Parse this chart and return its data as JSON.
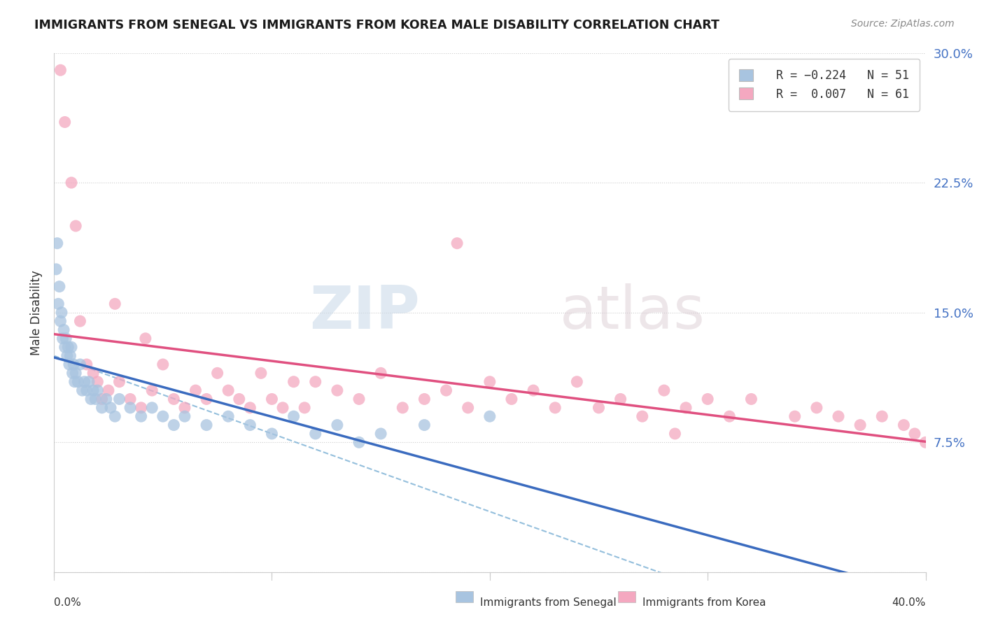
{
  "title": "IMMIGRANTS FROM SENEGAL VS IMMIGRANTS FROM KOREA MALE DISABILITY CORRELATION CHART",
  "source": "Source: ZipAtlas.com",
  "ylabel": "Male Disability",
  "xlim": [
    0.0,
    40.0
  ],
  "ylim": [
    0.0,
    30.0
  ],
  "yticks": [
    0.0,
    7.5,
    15.0,
    22.5,
    30.0
  ],
  "ytick_labels": [
    "",
    "7.5%",
    "15.0%",
    "22.5%",
    "30.0%"
  ],
  "xtick_labels": [
    "0.0%",
    "",
    "",
    "",
    "40.0%"
  ],
  "xticks": [
    0.0,
    10.0,
    20.0,
    30.0,
    40.0
  ],
  "senegal_R": -0.224,
  "senegal_N": 51,
  "korea_R": 0.007,
  "korea_N": 61,
  "senegal_color": "#a8c4e0",
  "senegal_line_color": "#3a6bbf",
  "korea_color": "#f4a8c0",
  "korea_line_color": "#e05080",
  "background_color": "#ffffff",
  "senegal_x": [
    0.1,
    0.15,
    0.2,
    0.25,
    0.3,
    0.35,
    0.4,
    0.45,
    0.5,
    0.55,
    0.6,
    0.65,
    0.7,
    0.75,
    0.8,
    0.85,
    0.9,
    0.95,
    1.0,
    1.1,
    1.2,
    1.3,
    1.4,
    1.5,
    1.6,
    1.7,
    1.8,
    1.9,
    2.0,
    2.2,
    2.4,
    2.6,
    2.8,
    3.0,
    3.5,
    4.0,
    4.5,
    5.0,
    5.5,
    6.0,
    7.0,
    8.0,
    9.0,
    10.0,
    11.0,
    12.0,
    13.0,
    14.0,
    15.0,
    17.0,
    20.0
  ],
  "senegal_y": [
    17.5,
    19.0,
    15.5,
    16.5,
    14.5,
    15.0,
    13.5,
    14.0,
    13.0,
    13.5,
    12.5,
    13.0,
    12.0,
    12.5,
    13.0,
    11.5,
    12.0,
    11.0,
    11.5,
    11.0,
    12.0,
    10.5,
    11.0,
    10.5,
    11.0,
    10.0,
    10.5,
    10.0,
    10.5,
    9.5,
    10.0,
    9.5,
    9.0,
    10.0,
    9.5,
    9.0,
    9.5,
    9.0,
    8.5,
    9.0,
    8.5,
    9.0,
    8.5,
    8.0,
    9.0,
    8.0,
    8.5,
    7.5,
    8.0,
    8.5,
    9.0
  ],
  "korea_x": [
    0.3,
    0.5,
    0.8,
    1.0,
    1.2,
    1.5,
    1.8,
    2.0,
    2.2,
    2.5,
    3.0,
    3.5,
    4.0,
    4.5,
    5.0,
    5.5,
    6.0,
    6.5,
    7.0,
    7.5,
    8.0,
    8.5,
    9.0,
    9.5,
    10.0,
    10.5,
    11.0,
    11.5,
    12.0,
    13.0,
    14.0,
    15.0,
    16.0,
    17.0,
    18.0,
    19.0,
    20.0,
    21.0,
    22.0,
    23.0,
    24.0,
    25.0,
    26.0,
    27.0,
    28.0,
    29.0,
    30.0,
    31.0,
    32.0,
    34.0,
    35.0,
    36.0,
    37.0,
    38.0,
    39.0,
    39.5,
    40.0,
    2.8,
    4.2,
    18.5,
    28.5
  ],
  "korea_y": [
    29.0,
    26.0,
    22.5,
    20.0,
    14.5,
    12.0,
    11.5,
    11.0,
    10.0,
    10.5,
    11.0,
    10.0,
    9.5,
    10.5,
    12.0,
    10.0,
    9.5,
    10.5,
    10.0,
    11.5,
    10.5,
    10.0,
    9.5,
    11.5,
    10.0,
    9.5,
    11.0,
    9.5,
    11.0,
    10.5,
    10.0,
    11.5,
    9.5,
    10.0,
    10.5,
    9.5,
    11.0,
    10.0,
    10.5,
    9.5,
    11.0,
    9.5,
    10.0,
    9.0,
    10.5,
    9.5,
    10.0,
    9.0,
    10.0,
    9.0,
    9.5,
    9.0,
    8.5,
    9.0,
    8.5,
    8.0,
    7.5,
    15.5,
    13.5,
    19.0,
    8.0
  ]
}
